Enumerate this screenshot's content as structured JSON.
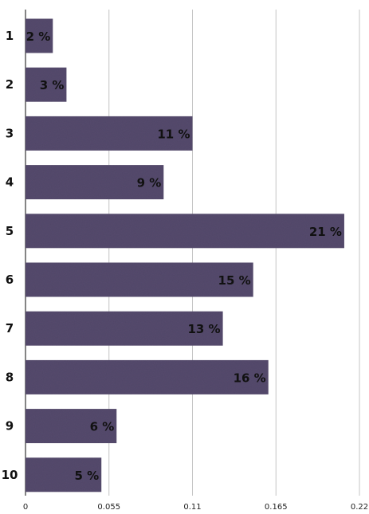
{
  "chart_data": {
    "type": "bar",
    "orientation": "horizontal",
    "categories": [
      "1",
      "2",
      "3",
      "4",
      "5",
      "6",
      "7",
      "8",
      "9",
      "10"
    ],
    "values": [
      0.018,
      0.027,
      0.11,
      0.091,
      0.21,
      0.15,
      0.13,
      0.16,
      0.06,
      0.05
    ],
    "value_labels": [
      "2 %",
      "3 %",
      "11 %",
      "9 %",
      "21 %",
      "15 %",
      "13 %",
      "16 %",
      "6 %",
      "5 %"
    ],
    "xticks": [
      0,
      0.055,
      0.11,
      0.165,
      0.22
    ],
    "xtick_labels": [
      "0",
      "0.055",
      "0.11",
      "0.165",
      "0.22"
    ],
    "xlim": [
      0,
      0.22
    ],
    "grid": "vertical",
    "bar_color": "#554a6d",
    "title": "",
    "xlabel": "",
    "ylabel": ""
  }
}
